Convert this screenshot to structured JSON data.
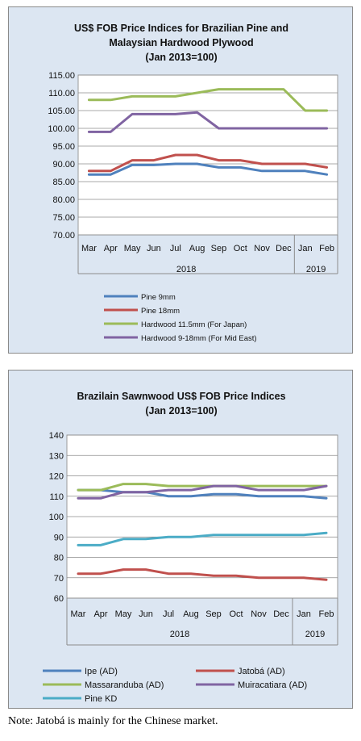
{
  "note": "Note: Jatobá is mainly for the Chinese market.",
  "chart_data": [
    {
      "type": "line",
      "title_lines": [
        "US$ FOB Price Indices for Brazilian Pine and",
        "Malaysian Hardwood Plywood",
        "(Jan 2013=100)"
      ],
      "categories": [
        "Mar",
        "Apr",
        "May",
        "Jun",
        "Jul",
        "Aug",
        "Sep",
        "Oct",
        "Nov",
        "Dec",
        "Jan",
        "Feb"
      ],
      "year_labels": [
        {
          "label": "2018",
          "from": 0,
          "to": 9
        },
        {
          "label": "2019",
          "from": 10,
          "to": 11
        }
      ],
      "ylim": [
        70,
        115
      ],
      "yticks": [
        "70.00",
        "75.00",
        "80.00",
        "85.00",
        "90.00",
        "95.00",
        "100.00",
        "105.00",
        "110.00",
        "115.00"
      ],
      "grid": true,
      "legend_position": "bottom",
      "series": [
        {
          "name": "Pine 9mm",
          "color": "#4f81bd",
          "values": [
            87,
            87,
            89.7,
            89.7,
            90,
            90,
            89,
            89,
            88,
            88,
            88,
            87
          ]
        },
        {
          "name": "Pine 18mm",
          "color": "#c0504d",
          "values": [
            88,
            88,
            91,
            91,
            92.5,
            92.5,
            91,
            91,
            90,
            90,
            90,
            89
          ]
        },
        {
          "name": "Hardwood 11.5mm (For Japan)",
          "color": "#9bbb59",
          "values": [
            108,
            108,
            109,
            109,
            109,
            110,
            111,
            111,
            111,
            111,
            105,
            105
          ]
        },
        {
          "name": "Hardwood 9-18mm (For Mid East)",
          "color": "#8064a2",
          "values": [
            99,
            99,
            104,
            104,
            104,
            104.5,
            100,
            100,
            100,
            100,
            100,
            100
          ]
        }
      ]
    },
    {
      "type": "line",
      "title_lines": [
        "Brazilain Sawnwood US$ FOB Price Indices",
        "(Jan 2013=100)"
      ],
      "categories": [
        "Mar",
        "Apr",
        "May",
        "Jun",
        "Jul",
        "Aug",
        "Sep",
        "Oct",
        "Nov",
        "Dec",
        "Jan",
        "Feb"
      ],
      "year_labels": [
        {
          "label": "2018",
          "from": 0,
          "to": 9
        },
        {
          "label": "2019",
          "from": 10,
          "to": 11
        }
      ],
      "ylim": [
        60,
        140
      ],
      "yticks": [
        "60",
        "70",
        "80",
        "90",
        "100",
        "110",
        "120",
        "130",
        "140"
      ],
      "grid": true,
      "legend_position": "bottom",
      "series": [
        {
          "name": "Ipe (AD)",
          "color": "#4f81bd",
          "values": [
            113,
            113,
            112,
            112,
            110,
            110,
            111,
            111,
            110,
            110,
            110,
            109
          ]
        },
        {
          "name": "Jatobá (AD)",
          "color": "#c0504d",
          "values": [
            72,
            72,
            74,
            74,
            72,
            72,
            71,
            71,
            70,
            70,
            70,
            69
          ]
        },
        {
          "name": "Massaranduba (AD)",
          "color": "#9bbb59",
          "values": [
            113,
            113,
            116,
            116,
            115,
            115,
            115,
            115,
            115,
            115,
            115,
            115
          ]
        },
        {
          "name": "Muiracatiara (AD)",
          "color": "#8064a2",
          "values": [
            109,
            109,
            112,
            112,
            113,
            113,
            115,
            115,
            113,
            113,
            113,
            115
          ]
        },
        {
          "name": "Pine KD",
          "color": "#4bacc6",
          "values": [
            86,
            86,
            89,
            89,
            90,
            90,
            91,
            91,
            91,
            91,
            91,
            92
          ]
        }
      ]
    }
  ]
}
